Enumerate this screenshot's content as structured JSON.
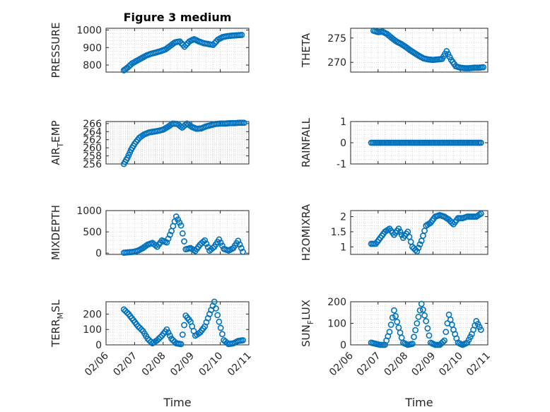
{
  "figure_title": "Figure 3 medium",
  "colors": {
    "marker": "#0072BD",
    "axis": "#262626",
    "grid": "#c8c8c8",
    "background": "#ffffff"
  },
  "chart_data": [
    {
      "type": "scatter",
      "id": "pressure",
      "title": "Figure 3 medium",
      "ylabel": "PRESSURE",
      "xlabel": "",
      "ylim": [
        760,
        1010
      ],
      "yticks": [
        800,
        900,
        1000
      ],
      "yticklabels": [
        "800",
        "900",
        "1000"
      ],
      "xlim": [
        "02/06",
        "02/11"
      ],
      "grid": true,
      "points": [
        [
          "02/06 15:00",
          770
        ],
        [
          "02/06 18:00",
          785
        ],
        [
          "02/06 22:00",
          810
        ],
        [
          "02/07 02:00",
          825
        ],
        [
          "02/07 06:00",
          840
        ],
        [
          "02/07 10:00",
          855
        ],
        [
          "02/07 14:00",
          865
        ],
        [
          "02/07 18:00",
          872
        ],
        [
          "02/07 22:00",
          880
        ],
        [
          "02/08 02:00",
          890
        ],
        [
          "02/08 06:00",
          910
        ],
        [
          "02/08 10:00",
          930
        ],
        [
          "02/08 14:00",
          935
        ],
        [
          "02/08 18:00",
          905
        ],
        [
          "02/08 22:00",
          935
        ],
        [
          "02/09 02:00",
          948
        ],
        [
          "02/09 06:00",
          935
        ],
        [
          "02/09 10:00",
          925
        ],
        [
          "02/09 14:00",
          920
        ],
        [
          "02/09 18:00",
          915
        ],
        [
          "02/09 22:00",
          945
        ],
        [
          "02/10 02:00",
          960
        ],
        [
          "02/10 06:00",
          965
        ],
        [
          "02/10 10:00",
          968
        ],
        [
          "02/10 14:00",
          970
        ],
        [
          "02/10 18:00",
          972
        ]
      ]
    },
    {
      "type": "scatter",
      "id": "theta",
      "ylabel": "THETA",
      "xlabel": "",
      "ylim": [
        268,
        277
      ],
      "yticks": [
        270,
        275
      ],
      "yticklabels": [
        "270",
        "275"
      ],
      "xlim": [
        "02/06",
        "02/11"
      ],
      "grid": true,
      "points": [
        [
          "02/06 20:00",
          276.5
        ],
        [
          "02/07 00:00",
          276.2
        ],
        [
          "02/07 04:00",
          276.3
        ],
        [
          "02/07 08:00",
          275.8
        ],
        [
          "02/07 12:00",
          275.0
        ],
        [
          "02/07 16:00",
          274.3
        ],
        [
          "02/07 20:00",
          273.8
        ],
        [
          "02/08 00:00",
          273.2
        ],
        [
          "02/08 04:00",
          272.5
        ],
        [
          "02/08 08:00",
          271.9
        ],
        [
          "02/08 12:00",
          271.3
        ],
        [
          "02/08 16:00",
          270.8
        ],
        [
          "02/08 20:00",
          270.6
        ],
        [
          "02/09 00:00",
          270.5
        ],
        [
          "02/09 04:00",
          270.6
        ],
        [
          "02/09 08:00",
          270.7
        ],
        [
          "02/09 12:00",
          272.3
        ],
        [
          "02/09 16:00",
          270.5
        ],
        [
          "02/09 20:00",
          269.2
        ],
        [
          "02/10 00:00",
          268.9
        ],
        [
          "02/10 04:00",
          268.8
        ],
        [
          "02/10 08:00",
          268.8
        ],
        [
          "02/10 12:00",
          268.9
        ],
        [
          "02/10 16:00",
          268.9
        ],
        [
          "02/10 20:00",
          269.0
        ]
      ]
    },
    {
      "type": "scatter",
      "id": "air_temp",
      "ylabel": "AIR_TEMP",
      "ylabel_main": "AIR",
      "ylabel_sub": "T",
      "ylabel_tail": "EMP",
      "xlabel": "",
      "ylim": [
        256,
        266.5
      ],
      "yticks": [
        256,
        258,
        260,
        262,
        264,
        266
      ],
      "yticklabels": [
        "256",
        "258",
        "260",
        "262",
        "264",
        "266"
      ],
      "xlim": [
        "02/06",
        "02/11"
      ],
      "grid": true,
      "points": [
        [
          "02/06 15:00",
          256.0
        ],
        [
          "02/06 18:00",
          257.5
        ],
        [
          "02/06 21:00",
          259.5
        ],
        [
          "02/07 00:00",
          261.0
        ],
        [
          "02/07 04:00",
          262.5
        ],
        [
          "02/07 08:00",
          263.3
        ],
        [
          "02/07 12:00",
          263.8
        ],
        [
          "02/07 16:00",
          264.0
        ],
        [
          "02/07 20:00",
          264.2
        ],
        [
          "02/08 00:00",
          264.5
        ],
        [
          "02/08 04:00",
          265.2
        ],
        [
          "02/08 08:00",
          266.0
        ],
        [
          "02/08 12:00",
          265.9
        ],
        [
          "02/08 16:00",
          265.0
        ],
        [
          "02/08 20:00",
          266.0
        ],
        [
          "02/09 00:00",
          265.2
        ],
        [
          "02/09 04:00",
          264.7
        ],
        [
          "02/09 08:00",
          264.8
        ],
        [
          "02/09 12:00",
          265.3
        ],
        [
          "02/09 16:00",
          265.6
        ],
        [
          "02/09 20:00",
          265.9
        ],
        [
          "02/10 00:00",
          266.0
        ],
        [
          "02/10 04:00",
          266.0
        ],
        [
          "02/10 08:00",
          266.1
        ],
        [
          "02/10 12:00",
          266.1
        ],
        [
          "02/10 16:00",
          266.2
        ],
        [
          "02/10 20:00",
          266.2
        ]
      ]
    },
    {
      "type": "scatter",
      "id": "rainfall",
      "ylabel": "RAINFALL",
      "xlabel": "",
      "ylim": [
        -1,
        1
      ],
      "yticks": [
        -1,
        0,
        1
      ],
      "yticklabels": [
        "-1",
        "0",
        "1"
      ],
      "xlim": [
        "02/06",
        "02/11"
      ],
      "grid": true,
      "points": [
        [
          "02/06 18:00",
          0
        ],
        [
          "02/06 22:00",
          0
        ],
        [
          "02/07 02:00",
          0
        ],
        [
          "02/07 06:00",
          0
        ],
        [
          "02/07 10:00",
          0
        ],
        [
          "02/07 14:00",
          0
        ],
        [
          "02/07 18:00",
          0
        ],
        [
          "02/07 22:00",
          0
        ],
        [
          "02/08 02:00",
          0
        ],
        [
          "02/08 06:00",
          0
        ],
        [
          "02/08 10:00",
          0
        ],
        [
          "02/08 14:00",
          0
        ],
        [
          "02/08 18:00",
          0
        ],
        [
          "02/08 22:00",
          0
        ],
        [
          "02/09 02:00",
          0
        ],
        [
          "02/09 06:00",
          0
        ],
        [
          "02/09 10:00",
          0
        ],
        [
          "02/09 14:00",
          0
        ],
        [
          "02/09 18:00",
          0
        ],
        [
          "02/09 22:00",
          0
        ],
        [
          "02/10 02:00",
          0
        ],
        [
          "02/10 06:00",
          0
        ],
        [
          "02/10 10:00",
          0
        ],
        [
          "02/10 14:00",
          0
        ],
        [
          "02/10 18:00",
          0
        ]
      ]
    },
    {
      "type": "scatter",
      "id": "mixdepth",
      "ylabel": "MIXDEPTH",
      "xlabel": "",
      "ylim": [
        -30,
        1000
      ],
      "yticks": [
        0,
        500,
        1000
      ],
      "yticklabels": [
        "0",
        "500",
        "1000"
      ],
      "xlim": [
        "02/06",
        "02/11"
      ],
      "grid": true,
      "points": [
        [
          "02/06 15:00",
          10
        ],
        [
          "02/06 19:00",
          20
        ],
        [
          "02/06 23:00",
          30
        ],
        [
          "02/07 03:00",
          60
        ],
        [
          "02/07 07:00",
          120
        ],
        [
          "02/07 11:00",
          200
        ],
        [
          "02/07 15:00",
          240
        ],
        [
          "02/07 19:00",
          150
        ],
        [
          "02/07 23:00",
          300
        ],
        [
          "02/08 03:00",
          250
        ],
        [
          "02/08 07:00",
          520
        ],
        [
          "02/08 11:00",
          860
        ],
        [
          "02/08 15:00",
          650
        ],
        [
          "02/08 19:00",
          90
        ],
        [
          "02/08 23:00",
          120
        ],
        [
          "02/09 03:00",
          50
        ],
        [
          "02/09 07:00",
          200
        ],
        [
          "02/09 11:00",
          300
        ],
        [
          "02/09 15:00",
          60
        ],
        [
          "02/09 19:00",
          150
        ],
        [
          "02/09 23:00",
          320
        ],
        [
          "02/10 03:00",
          100
        ],
        [
          "02/10 07:00",
          60
        ],
        [
          "02/10 11:00",
          120
        ],
        [
          "02/10 15:00",
          290
        ],
        [
          "02/10 19:00",
          30
        ]
      ]
    },
    {
      "type": "scatter",
      "id": "h2omixra",
      "ylabel": "H2OMIXRA",
      "xlabel": "",
      "ylim": [
        0.75,
        2.2
      ],
      "yticks": [
        1,
        1.5,
        2
      ],
      "yticklabels": [
        "1",
        "1.5",
        "2"
      ],
      "xlim": [
        "02/06",
        "02/11"
      ],
      "grid": true,
      "points": [
        [
          "02/06 18:00",
          1.1
        ],
        [
          "02/06 22:00",
          1.1
        ],
        [
          "02/07 02:00",
          1.3
        ],
        [
          "02/07 06:00",
          1.5
        ],
        [
          "02/07 10:00",
          1.6
        ],
        [
          "02/07 14:00",
          1.4
        ],
        [
          "02/07 18:00",
          1.6
        ],
        [
          "02/07 22:00",
          1.3
        ],
        [
          "02/08 02:00",
          1.5
        ],
        [
          "02/08 06:00",
          1.0
        ],
        [
          "02/08 10:00",
          0.85
        ],
        [
          "02/08 14:00",
          1.2
        ],
        [
          "02/08 18:00",
          1.7
        ],
        [
          "02/08 22:00",
          1.8
        ],
        [
          "02/09 02:00",
          2.0
        ],
        [
          "02/09 06:00",
          2.05
        ],
        [
          "02/09 10:00",
          2.0
        ],
        [
          "02/09 14:00",
          1.9
        ],
        [
          "02/09 18:00",
          1.75
        ],
        [
          "02/09 22:00",
          1.95
        ],
        [
          "02/10 02:00",
          1.95
        ],
        [
          "02/10 06:00",
          2.0
        ],
        [
          "02/10 10:00",
          2.0
        ],
        [
          "02/10 14:00",
          2.0
        ],
        [
          "02/10 18:00",
          2.1
        ]
      ]
    },
    {
      "type": "scatter",
      "id": "terr_msl",
      "ylabel": "TERR_MSL",
      "ylabel_main": "TERR",
      "ylabel_sub": "M",
      "ylabel_tail": "SL",
      "xlabel": "Time",
      "ylim": [
        0,
        280
      ],
      "yticks": [
        0,
        100,
        200
      ],
      "yticklabels": [
        "0",
        "100",
        "200"
      ],
      "xlim": [
        "02/06",
        "02/11"
      ],
      "xticks": [
        "02/06",
        "02/07",
        "02/08",
        "02/09",
        "02/10",
        "02/11"
      ],
      "xticklabels": [
        "02/06",
        "02/07",
        "02/08",
        "02/09",
        "02/10",
        "02/11"
      ],
      "grid": true,
      "points": [
        [
          "02/06 15:00",
          230
        ],
        [
          "02/06 19:00",
          200
        ],
        [
          "02/06 23:00",
          160
        ],
        [
          "02/07 03:00",
          120
        ],
        [
          "02/07 07:00",
          90
        ],
        [
          "02/07 11:00",
          40
        ],
        [
          "02/07 15:00",
          10
        ],
        [
          "02/07 19:00",
          30
        ],
        [
          "02/07 23:00",
          60
        ],
        [
          "02/08 03:00",
          100
        ],
        [
          "02/08 07:00",
          40
        ],
        [
          "02/08 11:00",
          10
        ],
        [
          "02/08 15:00",
          5
        ],
        [
          "02/08 19:00",
          190
        ],
        [
          "02/08 23:00",
          150
        ],
        [
          "02/09 03:00",
          60
        ],
        [
          "02/09 07:00",
          80
        ],
        [
          "02/09 11:00",
          120
        ],
        [
          "02/09 15:00",
          200
        ],
        [
          "02/09 19:00",
          280
        ],
        [
          "02/09 23:00",
          150
        ],
        [
          "02/10 03:00",
          30
        ],
        [
          "02/10 07:00",
          5
        ],
        [
          "02/10 11:00",
          10
        ],
        [
          "02/10 15:00",
          25
        ],
        [
          "02/10 19:00",
          30
        ]
      ]
    },
    {
      "type": "scatter",
      "id": "sun_flux",
      "ylabel": "SUN_FLUX",
      "ylabel_main": "SUN",
      "ylabel_sub": "F",
      "ylabel_tail": "LUX",
      "xlabel": "Time",
      "ylim": [
        0,
        200
      ],
      "yticks": [
        0,
        100,
        200
      ],
      "yticklabels": [
        "0",
        "100",
        "200"
      ],
      "xlim": [
        "02/06",
        "02/11"
      ],
      "xticks": [
        "02/06",
        "02/07",
        "02/08",
        "02/09",
        "02/10",
        "02/11"
      ],
      "xticklabels": [
        "02/06",
        "02/07",
        "02/08",
        "02/09",
        "02/10",
        "02/11"
      ],
      "grid": true,
      "points": [
        [
          "02/06 18:00",
          10
        ],
        [
          "02/06 22:00",
          5
        ],
        [
          "02/07 02:00",
          0
        ],
        [
          "02/07 06:00",
          0
        ],
        [
          "02/07 10:00",
          60
        ],
        [
          "02/07 14:00",
          160
        ],
        [
          "02/07 18:00",
          80
        ],
        [
          "02/07 22:00",
          10
        ],
        [
          "02/08 02:00",
          0
        ],
        [
          "02/08 06:00",
          5
        ],
        [
          "02/08 10:00",
          100
        ],
        [
          "02/08 14:00",
          190
        ],
        [
          "02/08 18:00",
          110
        ],
        [
          "02/08 22:00",
          10
        ],
        [
          "02/09 02:00",
          0
        ],
        [
          "02/09 06:00",
          0
        ],
        [
          "02/09 10:00",
          20
        ],
        [
          "02/09 14:00",
          140
        ],
        [
          "02/09 18:00",
          70
        ],
        [
          "02/09 22:00",
          10
        ],
        [
          "02/10 02:00",
          0
        ],
        [
          "02/10 06:00",
          10
        ],
        [
          "02/10 10:00",
          50
        ],
        [
          "02/10 14:00",
          110
        ],
        [
          "02/10 18:00",
          70
        ]
      ]
    }
  ]
}
